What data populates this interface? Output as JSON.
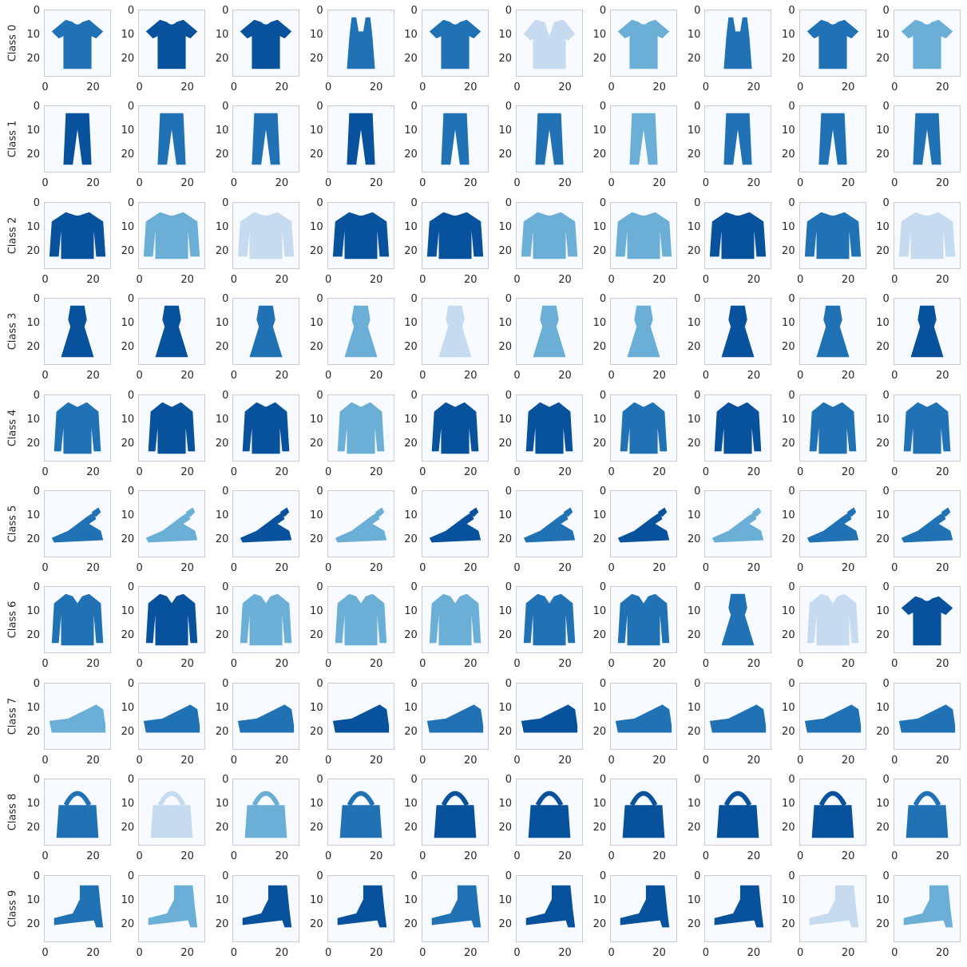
{
  "figure": {
    "colormap": "Blues",
    "background_color": "#f7fbff",
    "item_colors": {
      "dark": "#08519c",
      "mid": "#2171b5",
      "light": "#6baed6",
      "pale": "#c6dbef"
    }
  },
  "axes": {
    "y_ticks": [
      "0",
      "10",
      "20"
    ],
    "x_ticks": [
      "0",
      "20"
    ]
  },
  "rows": [
    {
      "label": "Class 0",
      "items": [
        "tshirt",
        "tshirt",
        "tshirt",
        "tank",
        "tshirt",
        "blouse",
        "tshirt",
        "tank",
        "tshirt",
        "tshirt"
      ],
      "shades": [
        "mid",
        "dark",
        "dark",
        "mid",
        "mid",
        "pale",
        "light",
        "mid",
        "mid",
        "light"
      ]
    },
    {
      "label": "Class 1",
      "items": [
        "trouser",
        "trouser",
        "trouser",
        "trouser",
        "trouser",
        "trouser",
        "trouser",
        "trouser",
        "trouser",
        "trouser"
      ],
      "shades": [
        "dark",
        "mid",
        "mid",
        "dark",
        "mid",
        "mid",
        "light",
        "mid",
        "mid",
        "mid"
      ]
    },
    {
      "label": "Class 2",
      "items": [
        "sweater",
        "sweater",
        "sweater",
        "sweater",
        "sweater",
        "sweater",
        "sweater",
        "sweater",
        "sweater",
        "sweater"
      ],
      "shades": [
        "dark",
        "light",
        "pale",
        "dark",
        "dark",
        "light",
        "light",
        "dark",
        "mid",
        "pale"
      ]
    },
    {
      "label": "Class 3",
      "items": [
        "dress",
        "dress",
        "dress",
        "dress",
        "dress",
        "dress",
        "dress",
        "dress",
        "dress",
        "dress"
      ],
      "shades": [
        "dark",
        "dark",
        "mid",
        "light",
        "pale",
        "light",
        "light",
        "dark",
        "mid",
        "dark"
      ]
    },
    {
      "label": "Class 4",
      "items": [
        "coat",
        "coat",
        "coat",
        "coat",
        "coat",
        "coat",
        "coat",
        "coat",
        "coat",
        "coat"
      ],
      "shades": [
        "mid",
        "dark",
        "dark",
        "light",
        "dark",
        "dark",
        "mid",
        "dark",
        "mid",
        "mid"
      ]
    },
    {
      "label": "Class 5",
      "items": [
        "sandal",
        "sandal",
        "sandal",
        "sandal",
        "sandal",
        "sandal",
        "sandal",
        "sandal",
        "sandal",
        "sandal"
      ],
      "shades": [
        "mid",
        "light",
        "dark",
        "light",
        "dark",
        "mid",
        "dark",
        "light",
        "mid",
        "mid"
      ]
    },
    {
      "label": "Class 6",
      "items": [
        "shirt",
        "shirt",
        "shirt",
        "shirt",
        "shirt",
        "shirt",
        "shirt",
        "dress",
        "shirt",
        "tshirt"
      ],
      "shades": [
        "mid",
        "dark",
        "light",
        "light",
        "light",
        "mid",
        "mid",
        "mid",
        "pale",
        "dark"
      ]
    },
    {
      "label": "Class 7",
      "items": [
        "sneaker",
        "sneaker",
        "sneaker",
        "sneaker",
        "sneaker",
        "sneaker",
        "sneaker",
        "sneaker",
        "sneaker",
        "sneaker"
      ],
      "shades": [
        "light",
        "mid",
        "mid",
        "dark",
        "mid",
        "dark",
        "mid",
        "mid",
        "mid",
        "mid"
      ]
    },
    {
      "label": "Class 8",
      "items": [
        "bag",
        "bag",
        "bag",
        "bag",
        "bag",
        "bag",
        "bag",
        "bag",
        "bag",
        "bag"
      ],
      "shades": [
        "mid",
        "pale",
        "light",
        "mid",
        "dark",
        "dark",
        "dark",
        "dark",
        "dark",
        "mid"
      ]
    },
    {
      "label": "Class 9",
      "items": [
        "boot",
        "boot",
        "boot",
        "boot",
        "boot",
        "boot",
        "boot",
        "boot",
        "boot",
        "boot"
      ],
      "shades": [
        "mid",
        "light",
        "dark",
        "dark",
        "mid",
        "dark",
        "dark",
        "dark",
        "pale",
        "light"
      ]
    }
  ]
}
